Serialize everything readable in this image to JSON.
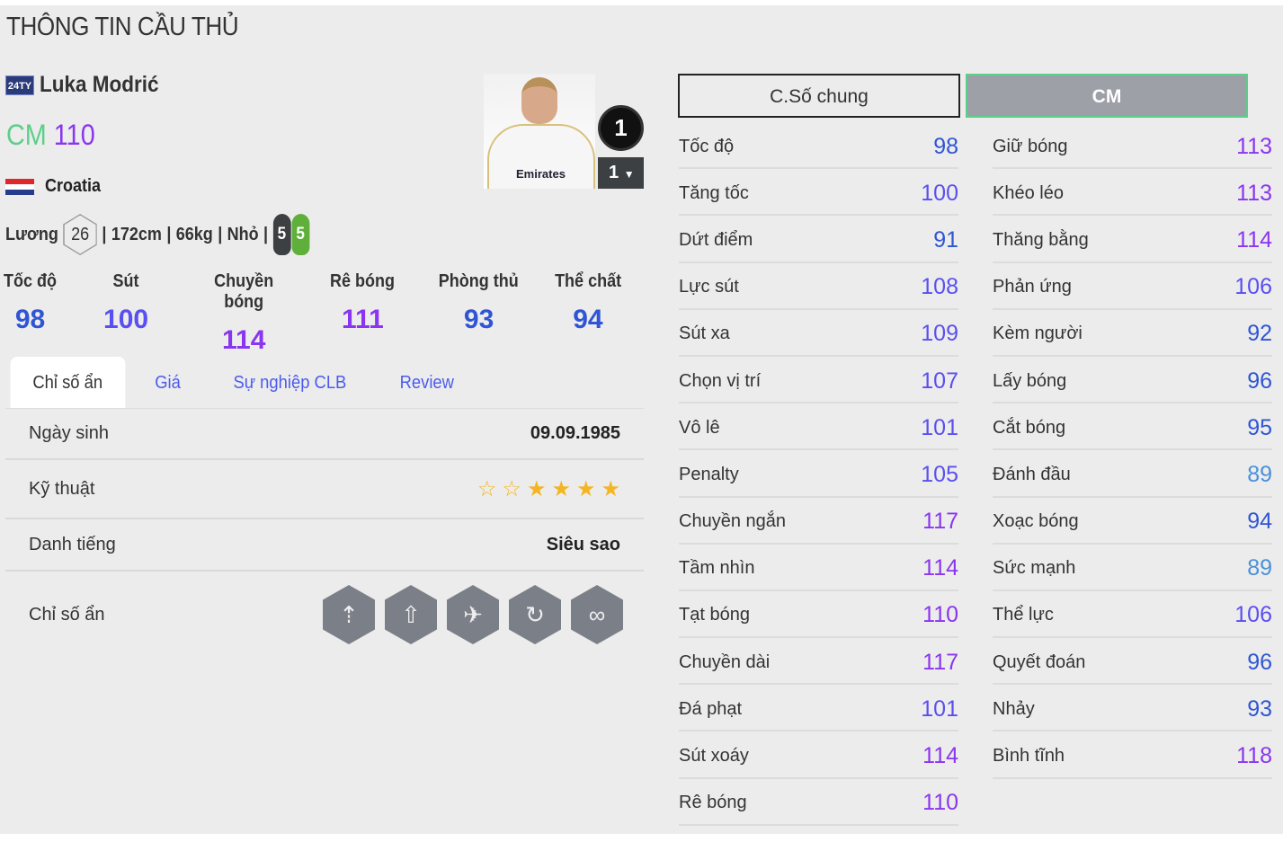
{
  "title": "THÔNG TIN CẦU THỦ",
  "player": {
    "season_badge": "24TY",
    "name": "Luka Modrić",
    "position": "CM",
    "ovr": "110",
    "nation": "Croatia",
    "salary_label": "Lương",
    "salary": "26",
    "height": "172cm",
    "weight": "66kg",
    "body": "Nhỏ",
    "left_foot": "5",
    "right_foot": "5",
    "photo_text": "Emirates",
    "jersey_level": "1",
    "rank": "1"
  },
  "colors": {
    "position": "#5ccf8a",
    "t89": "#4a90d9",
    "t90": "#2f55d4",
    "t100": "#5a4ff0",
    "t110": "#8a35f0",
    "star": "#f4b521"
  },
  "main_stats": [
    {
      "label": "Tốc độ",
      "value": "98"
    },
    {
      "label": "Sút",
      "value": "100"
    },
    {
      "label": "Chuyền bóng",
      "value": "114"
    },
    {
      "label": "Rê bóng",
      "value": "111"
    },
    {
      "label": "Phòng thủ",
      "value": "93"
    },
    {
      "label": "Thể chất",
      "value": "94"
    }
  ],
  "tabs": [
    "Chỉ số ẩn",
    "Giá",
    "Sự nghiệp CLB",
    "Review"
  ],
  "details": {
    "birth_label": "Ngày sinh",
    "birth": "09.09.1985",
    "skill_label": "Kỹ thuật",
    "skill_stars": 4,
    "skill_stars_max": 6,
    "rep_label": "Danh tiếng",
    "rep": "Siêu sao",
    "hidden_label": "Chỉ số ẩn",
    "hidden_traits": [
      "long-shot-taker-icon",
      "finesse-shot-icon",
      "power-header-icon",
      "outside-foot-shot-icon",
      "playmaker-icon"
    ]
  },
  "buttons": {
    "general": "C.Số chung",
    "position": "CM"
  },
  "attributes_left": [
    [
      "Tốc độ",
      "98"
    ],
    [
      "Tăng tốc",
      "100"
    ],
    [
      "Dứt điểm",
      "91"
    ],
    [
      "Lực sút",
      "108"
    ],
    [
      "Sút xa",
      "109"
    ],
    [
      "Chọn vị trí",
      "107"
    ],
    [
      "Vô lê",
      "101"
    ],
    [
      "Penalty",
      "105"
    ],
    [
      "Chuyền ngắn",
      "117"
    ],
    [
      "Tầm nhìn",
      "114"
    ],
    [
      "Tạt bóng",
      "110"
    ],
    [
      "Chuyền dài",
      "117"
    ],
    [
      "Đá phạt",
      "101"
    ],
    [
      "Sút xoáy",
      "114"
    ],
    [
      "Rê bóng",
      "110"
    ]
  ],
  "attributes_right": [
    [
      "Giữ bóng",
      "113"
    ],
    [
      "Khéo léo",
      "113"
    ],
    [
      "Thăng bằng",
      "114"
    ],
    [
      "Phản ứng",
      "106"
    ],
    [
      "Kèm người",
      "92"
    ],
    [
      "Lấy bóng",
      "96"
    ],
    [
      "Cắt bóng",
      "95"
    ],
    [
      "Đánh đầu",
      "89"
    ],
    [
      "Xoạc bóng",
      "94"
    ],
    [
      "Sức mạnh",
      "89"
    ],
    [
      "Thể lực",
      "106"
    ],
    [
      "Quyết đoán",
      "96"
    ],
    [
      "Nhảy",
      "93"
    ],
    [
      "Bình tĩnh",
      "118"
    ]
  ]
}
